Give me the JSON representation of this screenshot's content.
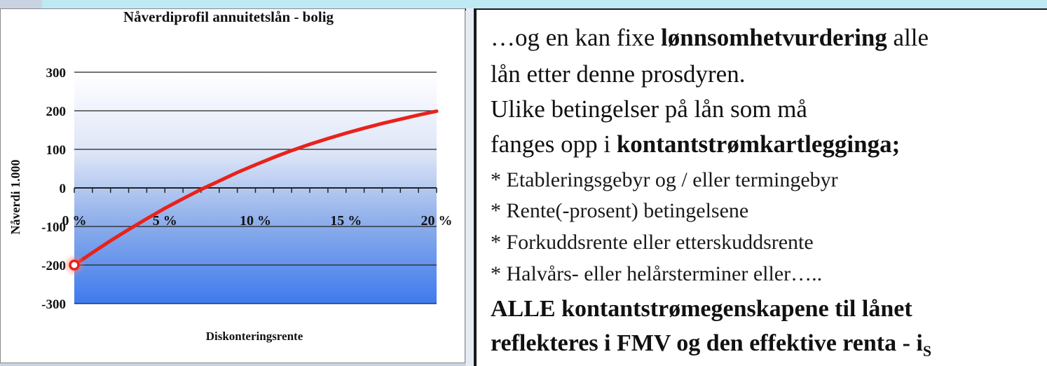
{
  "chart_data": {
    "type": "line",
    "title": "Nåverdiprofil annuitetslån - bolig",
    "xlabel": "Diskonteringsrente",
    "ylabel": "Nåverdi 1.000",
    "x_tick_labels": [
      "0 %",
      "5 %",
      "10 %",
      "15 %",
      "20 %"
    ],
    "y_tick_labels": [
      "300",
      "200",
      "100",
      "0",
      "-100",
      "-200",
      "-300"
    ],
    "xlim": [
      0,
      20
    ],
    "ylim": [
      -300,
      300
    ],
    "grid": true,
    "line_color": "#e8221b",
    "x": [
      0,
      1,
      2,
      3,
      4,
      5,
      6,
      7,
      8,
      9,
      10,
      11,
      12,
      13,
      14,
      15,
      16,
      17,
      18,
      19,
      20
    ],
    "y": [
      -200,
      -168,
      -137,
      -108,
      -80,
      -53,
      -28,
      -4,
      18,
      40,
      60,
      79,
      97,
      113,
      128,
      142,
      155,
      167,
      178,
      189,
      199
    ],
    "highlight_point": {
      "x": 0,
      "y": -200
    }
  },
  "text_panel": {
    "line1_prefix": "…og en kan fixe ",
    "line1_bold": "lønnsomhetvurdering",
    "line1_suffix": " alle",
    "line2": "lån etter denne prosdyren.",
    "line3": "Ulike betingelser på lån som må",
    "line4_prefix": "fanges opp i ",
    "line4_bold": "kontantstrømkartlegginga;",
    "bullets": [
      "*  Etableringsgebyr og / eller termingebyr",
      "*  Rente(-prosent) betingelsene",
      "*  Forkuddsrente eller etterskuddsrente",
      "*  Halvårs- eller helårsterminer eller….."
    ],
    "conclusion_line1": "ALLE kontantstrømegenskapene til lånet",
    "conclusion_line2": "reflekteres i FMV og den effektive renta - i",
    "conclusion_sub": "S"
  }
}
